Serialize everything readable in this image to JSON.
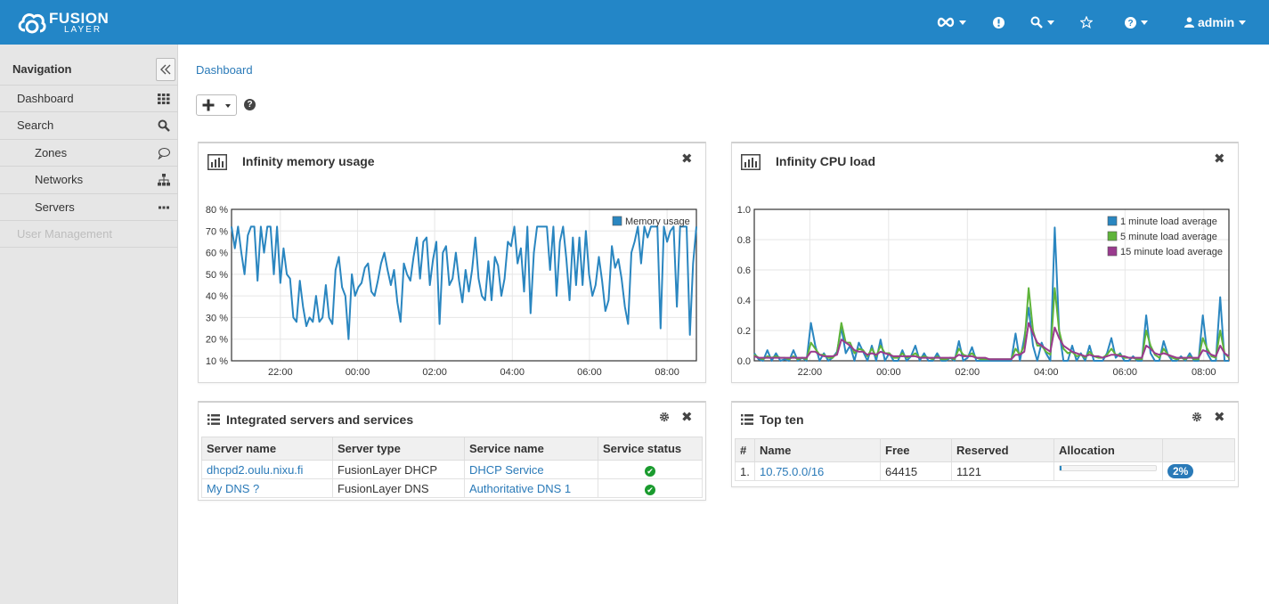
{
  "brand": {
    "line1": "FUSION",
    "line2": "LAYER"
  },
  "header": {
    "user": "admin"
  },
  "sidebar": {
    "title": "Navigation",
    "items": [
      {
        "label": "Dashboard",
        "icon": "grid-icon"
      },
      {
        "label": "Search",
        "icon": "search-icon"
      },
      {
        "label": "Zones",
        "icon": "speech-bubble-icon"
      },
      {
        "label": "Networks",
        "icon": "sitemap-icon"
      },
      {
        "label": "Servers",
        "icon": "ellipsis-icon"
      },
      {
        "label": "User Management",
        "icon": ""
      }
    ]
  },
  "breadcrumb": "Dashboard",
  "panels": {
    "memory": {
      "title": "Infinity memory usage"
    },
    "cpu": {
      "title": "Infinity CPU load"
    },
    "servers": {
      "title": "Integrated servers and services",
      "headers": [
        "Server name",
        "Server type",
        "Service name",
        "Service status"
      ],
      "rows": [
        {
          "server": "dhcpd2.oulu.nixu.fi",
          "type": "FusionLayer DHCP",
          "service": "DHCP Service",
          "status": "ok"
        },
        {
          "server": "My DNS ?",
          "type": "FusionLayer DNS",
          "service": "Authoritative DNS 1",
          "status": "ok"
        }
      ]
    },
    "topten": {
      "title": "Top ten",
      "headers": [
        "#",
        "Name",
        "Free",
        "Reserved",
        "Allocation",
        ""
      ],
      "rows": [
        {
          "index": "1.",
          "name": "10.75.0.0/16",
          "free": "64415",
          "reserved": "1121",
          "allocation": 0.02,
          "allocation_label": "2%"
        }
      ]
    }
  },
  "colors": {
    "accent": "#2386c7",
    "series1": "#2a86c0",
    "series2": "#5fb43a",
    "series3": "#9a3a8e"
  },
  "chart_data": [
    {
      "type": "line",
      "title": "Infinity memory usage",
      "xticks": [
        "22:00",
        "00:00",
        "02:00",
        "04:00",
        "06:00",
        "08:00"
      ],
      "ylim": [
        10,
        80
      ],
      "yticks": [
        "10 %",
        "20 %",
        "30 %",
        "40 %",
        "50 %",
        "60 %",
        "70 %",
        "80 %"
      ],
      "legend": "top-right",
      "grid": true,
      "series": [
        {
          "name": "Memory usage",
          "values": [
            72,
            62,
            72,
            60,
            50,
            68,
            72,
            72,
            47,
            72,
            60,
            72,
            72,
            50,
            72,
            46,
            62,
            50,
            48,
            30,
            28,
            47,
            35,
            26,
            30,
            28,
            40,
            28,
            30,
            45,
            30,
            27,
            52,
            58,
            44,
            40,
            20,
            50,
            40,
            44,
            46,
            53,
            55,
            42,
            40,
            47,
            55,
            60,
            52,
            45,
            52,
            37,
            28,
            55,
            50,
            47,
            58,
            67,
            48,
            65,
            67,
            45,
            57,
            65,
            27,
            60,
            63,
            45,
            48,
            60,
            47,
            37,
            52,
            42,
            52,
            67,
            48,
            40,
            38,
            56,
            38,
            58,
            54,
            40,
            48,
            65,
            63,
            72,
            55,
            62,
            42,
            72,
            32,
            60,
            72,
            72,
            72,
            72,
            52,
            72,
            40,
            65,
            72,
            57,
            38,
            67,
            45,
            67,
            45,
            70,
            50,
            40,
            45,
            58,
            47,
            33,
            38,
            63,
            53,
            57,
            48,
            35,
            27,
            60,
            65,
            72,
            55,
            72,
            67,
            72,
            72,
            72,
            25,
            72,
            65,
            70,
            72,
            35,
            72,
            72,
            72,
            22,
            55,
            72
          ]
        }
      ]
    },
    {
      "type": "line",
      "title": "Infinity CPU load",
      "xticks": [
        "22:00",
        "00:00",
        "02:00",
        "04:00",
        "06:00",
        "08:00"
      ],
      "ylim": [
        0,
        1.0
      ],
      "yticks": [
        "0.0",
        "0.2",
        "0.4",
        "0.6",
        "0.8",
        "1.0"
      ],
      "legend": "top-right",
      "grid": true,
      "series": [
        {
          "name": "1 minute load average",
          "values": [
            0.05,
            0.01,
            0.0,
            0.07,
            0.0,
            0.05,
            0.0,
            0.01,
            0.0,
            0.07,
            0.0,
            0.02,
            0.0,
            0.25,
            0.1,
            0.0,
            0.05,
            0.0,
            0.02,
            0.06,
            0.22,
            0.05,
            0.1,
            0.0,
            0.12,
            0.06,
            0.0,
            0.1,
            0.0,
            0.14,
            0.0,
            0.05,
            0.0,
            0.0,
            0.07,
            0.0,
            0.03,
            0.1,
            0.0,
            0.05,
            0.0,
            0.0,
            0.05,
            0.0,
            0.0,
            0.02,
            0.0,
            0.13,
            0.0,
            0.02,
            0.09,
            0.0,
            0.0,
            0.0,
            0.0,
            0.0,
            0.0,
            0.0,
            0.0,
            0.0,
            0.18,
            0.0,
            0.15,
            0.35,
            0.1,
            0.0,
            0.12,
            0.05,
            0.0,
            0.88,
            0.2,
            0.0,
            0.0,
            0.1,
            0.0,
            0.05,
            0.0,
            0.1,
            0.0,
            0.0,
            0.0,
            0.05,
            0.15,
            0.02,
            0.05,
            0.0,
            0.0,
            0.03,
            0.0,
            0.0,
            0.3,
            0.05,
            0.0,
            0.0,
            0.13,
            0.04,
            0.0,
            0.0,
            0.03,
            0.0,
            0.05,
            0.0,
            0.0,
            0.3,
            0.05,
            0.0,
            0.0,
            0.42,
            0.0,
            0.0
          ]
        },
        {
          "name": "5 minute load average",
          "values": [
            0.04,
            0.02,
            0.01,
            0.03,
            0.02,
            0.03,
            0.02,
            0.02,
            0.01,
            0.03,
            0.01,
            0.02,
            0.01,
            0.12,
            0.08,
            0.04,
            0.04,
            0.02,
            0.02,
            0.05,
            0.25,
            0.12,
            0.12,
            0.05,
            0.08,
            0.07,
            0.03,
            0.08,
            0.03,
            0.1,
            0.05,
            0.05,
            0.02,
            0.02,
            0.05,
            0.02,
            0.03,
            0.05,
            0.02,
            0.03,
            0.02,
            0.01,
            0.03,
            0.01,
            0.01,
            0.02,
            0.01,
            0.08,
            0.04,
            0.03,
            0.05,
            0.02,
            0.01,
            0.01,
            0.01,
            0.01,
            0.01,
            0.01,
            0.01,
            0.01,
            0.08,
            0.04,
            0.1,
            0.48,
            0.2,
            0.1,
            0.1,
            0.06,
            0.04,
            0.48,
            0.2,
            0.08,
            0.05,
            0.06,
            0.03,
            0.04,
            0.02,
            0.06,
            0.03,
            0.02,
            0.02,
            0.04,
            0.08,
            0.04,
            0.04,
            0.02,
            0.02,
            0.02,
            0.01,
            0.01,
            0.2,
            0.1,
            0.04,
            0.02,
            0.08,
            0.04,
            0.02,
            0.01,
            0.02,
            0.01,
            0.03,
            0.01,
            0.01,
            0.15,
            0.08,
            0.03,
            0.02,
            0.2,
            0.05,
            0.02
          ]
        },
        {
          "name": "15 minute load average",
          "values": [
            0.03,
            0.02,
            0.02,
            0.02,
            0.02,
            0.02,
            0.02,
            0.02,
            0.02,
            0.02,
            0.02,
            0.02,
            0.02,
            0.06,
            0.06,
            0.04,
            0.03,
            0.03,
            0.03,
            0.04,
            0.14,
            0.12,
            0.1,
            0.07,
            0.06,
            0.06,
            0.04,
            0.05,
            0.04,
            0.06,
            0.05,
            0.04,
            0.03,
            0.03,
            0.03,
            0.03,
            0.03,
            0.03,
            0.02,
            0.02,
            0.02,
            0.02,
            0.02,
            0.02,
            0.02,
            0.02,
            0.02,
            0.04,
            0.03,
            0.03,
            0.03,
            0.02,
            0.02,
            0.02,
            0.01,
            0.01,
            0.01,
            0.01,
            0.01,
            0.01,
            0.04,
            0.04,
            0.06,
            0.25,
            0.18,
            0.12,
            0.1,
            0.08,
            0.06,
            0.22,
            0.15,
            0.1,
            0.08,
            0.06,
            0.05,
            0.04,
            0.03,
            0.04,
            0.03,
            0.03,
            0.02,
            0.03,
            0.04,
            0.04,
            0.03,
            0.03,
            0.02,
            0.02,
            0.02,
            0.02,
            0.1,
            0.08,
            0.05,
            0.04,
            0.05,
            0.04,
            0.03,
            0.02,
            0.02,
            0.02,
            0.02,
            0.02,
            0.02,
            0.07,
            0.06,
            0.04,
            0.03,
            0.1,
            0.05,
            0.03
          ]
        }
      ]
    }
  ]
}
